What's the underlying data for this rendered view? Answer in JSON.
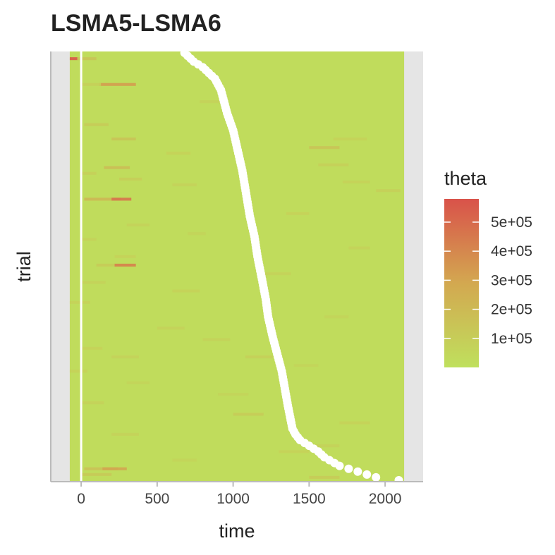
{
  "chart_data": {
    "type": "heatmap",
    "title": "LSMA5-LSMA6",
    "xlabel": "time",
    "ylabel": "trial",
    "xlim": [
      -200,
      2250
    ],
    "x_data_range": [
      -75,
      2125
    ],
    "x_ticks": [
      0,
      500,
      1000,
      1500,
      2000
    ],
    "x_tick_labels": [
      "0",
      "500",
      "1000",
      "1500",
      "2000"
    ],
    "y_ticks": [],
    "grid": false,
    "trial_count": 150,
    "background_theta": 20000,
    "vertical_reference_line": {
      "x": 0,
      "color": "#ffffff"
    },
    "legend": {
      "title": "theta",
      "position": "right",
      "range": [
        0,
        580000
      ],
      "ticks": [
        100000,
        200000,
        300000,
        400000,
        500000
      ],
      "tick_labels": [
        "1e+05",
        "2e+05",
        "3e+05",
        "4e+05",
        "5e+05"
      ],
      "low_color": "#bfe05d",
      "mid_color": "#d3a850",
      "high_color": "#d9524a"
    },
    "highlights": [
      {
        "trial": 3,
        "x0": -75,
        "x1": -25,
        "theta": 560000
      },
      {
        "trial": 3,
        "x0": -25,
        "x1": 100,
        "theta": 150000
      },
      {
        "trial": 12,
        "x0": 120,
        "x1": 360,
        "theta": 330000
      },
      {
        "trial": 12,
        "x0": 0,
        "x1": 130,
        "theta": 90000
      },
      {
        "trial": 18,
        "x0": 780,
        "x1": 960,
        "theta": 70000
      },
      {
        "trial": 26,
        "x0": 20,
        "x1": 180,
        "theta": 110000
      },
      {
        "trial": 31,
        "x0": 200,
        "x1": 360,
        "theta": 150000
      },
      {
        "trial": 31,
        "x0": 1660,
        "x1": 1880,
        "theta": 80000
      },
      {
        "trial": 34,
        "x0": 1500,
        "x1": 1700,
        "theta": 150000
      },
      {
        "trial": 36,
        "x0": 560,
        "x1": 720,
        "theta": 80000
      },
      {
        "trial": 40,
        "x0": 1560,
        "x1": 1760,
        "theta": 90000
      },
      {
        "trial": 41,
        "x0": 150,
        "x1": 320,
        "theta": 180000
      },
      {
        "trial": 43,
        "x0": 0,
        "x1": 100,
        "theta": 90000
      },
      {
        "trial": 45,
        "x0": 250,
        "x1": 400,
        "theta": 100000
      },
      {
        "trial": 46,
        "x0": 1720,
        "x1": 1900,
        "theta": 80000
      },
      {
        "trial": 47,
        "x0": 600,
        "x1": 760,
        "theta": 70000
      },
      {
        "trial": 49,
        "x0": 1940,
        "x1": 2100,
        "theta": 90000
      },
      {
        "trial": 52,
        "x0": 20,
        "x1": 260,
        "theta": 210000
      },
      {
        "trial": 52,
        "x0": 200,
        "x1": 330,
        "theta": 470000
      },
      {
        "trial": 57,
        "x0": 1350,
        "x1": 1500,
        "theta": 80000
      },
      {
        "trial": 61,
        "x0": 300,
        "x1": 450,
        "theta": 70000
      },
      {
        "trial": 64,
        "x0": 700,
        "x1": 820,
        "theta": 60000
      },
      {
        "trial": 66,
        "x0": 0,
        "x1": 100,
        "theta": 70000
      },
      {
        "trial": 69,
        "x0": 1760,
        "x1": 1900,
        "theta": 70000
      },
      {
        "trial": 72,
        "x0": 220,
        "x1": 360,
        "theta": 80000
      },
      {
        "trial": 75,
        "x0": 100,
        "x1": 330,
        "theta": 110000
      },
      {
        "trial": 75,
        "x0": 220,
        "x1": 360,
        "theta": 420000
      },
      {
        "trial": 78,
        "x0": 1200,
        "x1": 1380,
        "theta": 70000
      },
      {
        "trial": 81,
        "x0": 0,
        "x1": 160,
        "theta": 70000
      },
      {
        "trial": 84,
        "x0": 600,
        "x1": 780,
        "theta": 80000
      },
      {
        "trial": 88,
        "x0": -75,
        "x1": 60,
        "theta": 80000
      },
      {
        "trial": 93,
        "x0": 1600,
        "x1": 1760,
        "theta": 60000
      },
      {
        "trial": 97,
        "x0": 500,
        "x1": 680,
        "theta": 70000
      },
      {
        "trial": 101,
        "x0": 800,
        "x1": 980,
        "theta": 70000
      },
      {
        "trial": 104,
        "x0": 0,
        "x1": 140,
        "theta": 80000
      },
      {
        "trial": 107,
        "x0": 200,
        "x1": 380,
        "theta": 70000
      },
      {
        "trial": 107,
        "x0": 1080,
        "x1": 1260,
        "theta": 90000
      },
      {
        "trial": 110,
        "x0": 1400,
        "x1": 1560,
        "theta": 60000
      },
      {
        "trial": 112,
        "x0": -75,
        "x1": 40,
        "theta": 80000
      },
      {
        "trial": 116,
        "x0": 300,
        "x1": 450,
        "theta": 60000
      },
      {
        "trial": 120,
        "x0": 900,
        "x1": 1100,
        "theta": 60000
      },
      {
        "trial": 123,
        "x0": 0,
        "x1": 150,
        "theta": 70000
      },
      {
        "trial": 127,
        "x0": 1000,
        "x1": 1200,
        "theta": 110000
      },
      {
        "trial": 130,
        "x0": 1700,
        "x1": 1900,
        "theta": 80000
      },
      {
        "trial": 134,
        "x0": 200,
        "x1": 380,
        "theta": 70000
      },
      {
        "trial": 138,
        "x0": 1500,
        "x1": 1700,
        "theta": 70000
      },
      {
        "trial": 140,
        "x0": 1300,
        "x1": 1500,
        "theta": 80000
      },
      {
        "trial": 143,
        "x0": 600,
        "x1": 760,
        "theta": 60000
      },
      {
        "trial": 146,
        "x0": 20,
        "x1": 240,
        "theta": 160000
      },
      {
        "trial": 146,
        "x0": 140,
        "x1": 300,
        "theta": 300000
      },
      {
        "trial": 148,
        "x0": 0,
        "x1": 200,
        "theta": 120000
      },
      {
        "trial": 149,
        "x0": 1500,
        "x1": 1700,
        "theta": 110000
      }
    ],
    "reaction_time_points": {
      "color": "#ffffff",
      "anchors": [
        [
          1,
          680
        ],
        [
          4,
          740
        ],
        [
          6,
          800
        ],
        [
          10,
          880
        ],
        [
          14,
          920
        ],
        [
          18,
          940
        ],
        [
          22,
          960
        ],
        [
          28,
          1000
        ],
        [
          35,
          1030
        ],
        [
          42,
          1060
        ],
        [
          50,
          1085
        ],
        [
          58,
          1110
        ],
        [
          65,
          1140
        ],
        [
          72,
          1160
        ],
        [
          80,
          1190
        ],
        [
          87,
          1215
        ],
        [
          93,
          1230
        ],
        [
          100,
          1260
        ],
        [
          106,
          1290
        ],
        [
          112,
          1320
        ],
        [
          118,
          1340
        ],
        [
          124,
          1360
        ],
        [
          128,
          1375
        ],
        [
          132,
          1390
        ],
        [
          134,
          1410
        ],
        [
          136,
          1440
        ],
        [
          138,
          1500
        ],
        [
          140,
          1560
        ],
        [
          142,
          1600
        ],
        [
          145,
          1700
        ],
        [
          147,
          1820
        ],
        [
          149,
          1940
        ],
        [
          150,
          2090
        ]
      ]
    }
  }
}
